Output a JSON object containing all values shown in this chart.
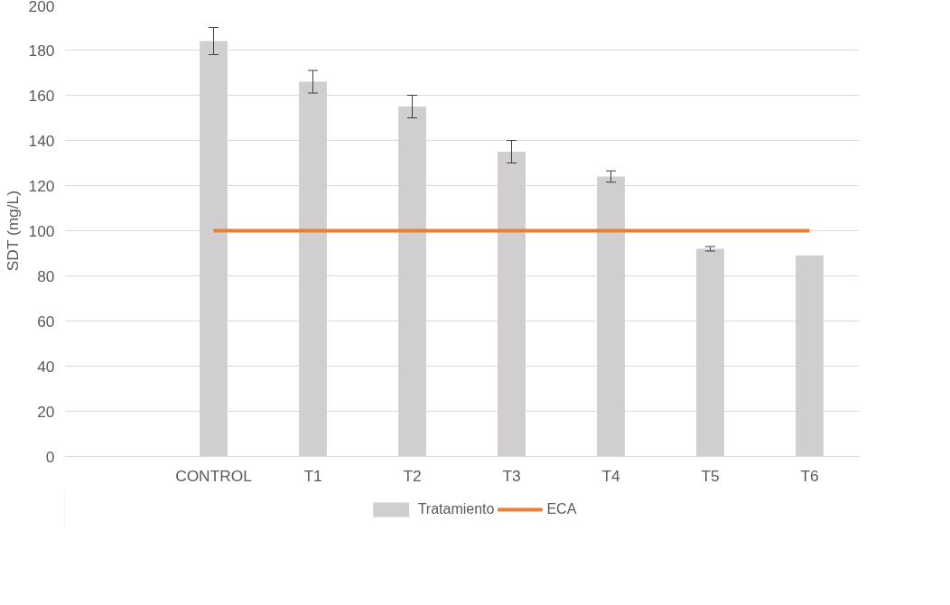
{
  "chart_data": {
    "type": "bar",
    "ylabel": "SDT (mg/L)",
    "categories": [
      null,
      "CONTROL",
      "T1",
      "T2",
      "T3",
      "T4",
      "T5",
      "T6"
    ],
    "series": [
      {
        "name": "Tratamiento",
        "color": "#d0cece",
        "values": [
          null,
          184,
          166,
          155,
          135,
          124,
          92,
          89
        ],
        "errors": [
          null,
          6,
          5,
          5,
          5,
          2.5,
          1,
          null
        ]
      },
      {
        "name": "ECA",
        "type": "line",
        "color": "#ed7d31",
        "values": [
          null,
          100,
          100,
          100,
          100,
          100,
          100,
          100
        ]
      }
    ],
    "ylim": [
      0,
      200
    ],
    "yticks": [
      0,
      20,
      40,
      60,
      80,
      100,
      120,
      140,
      160,
      180,
      200
    ],
    "grid": "y",
    "legend": "bottom"
  }
}
